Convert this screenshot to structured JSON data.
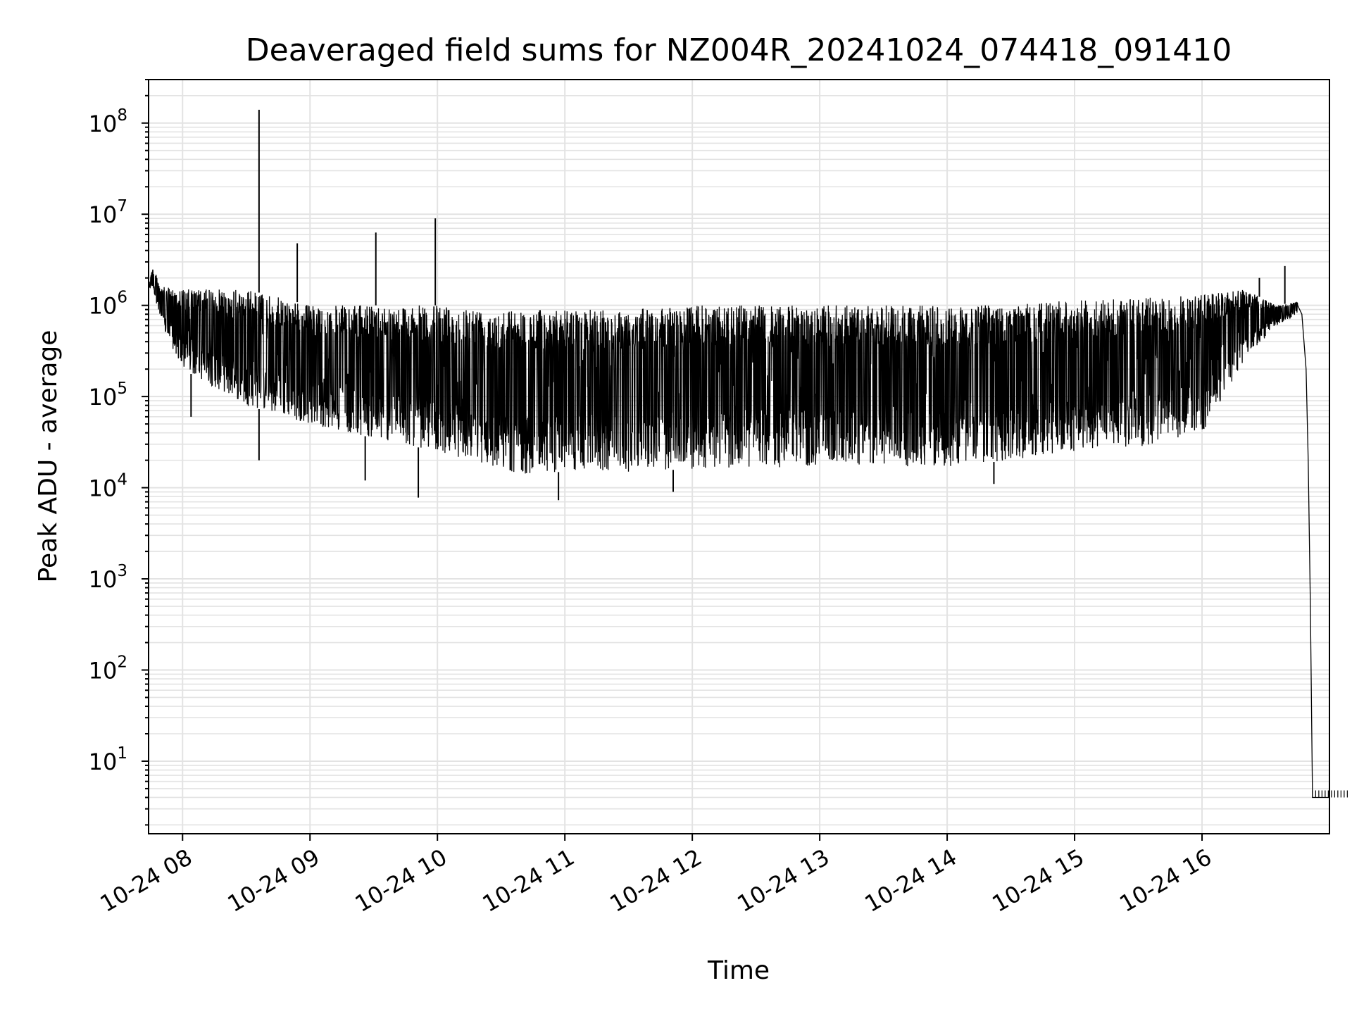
{
  "chart_data": {
    "type": "line",
    "title": "Deaveraged field sums for NZ004R_20241024_074418_091410",
    "xlabel": "Time",
    "ylabel": "Peak ADU - average",
    "yscale": "log",
    "ylim": [
      1.6,
      300000000
    ],
    "xlim": [
      "10-24 07:44",
      "10-24 17:00"
    ],
    "grid": true,
    "x_ticks": [
      "10-24 08",
      "10-24 09",
      "10-24 10",
      "10-24 11",
      "10-24 12",
      "10-24 13",
      "10-24 14",
      "10-24 15",
      "10-24 16"
    ],
    "y_ticks": [
      {
        "base": "10",
        "exp": "1",
        "value": 10
      },
      {
        "base": "10",
        "exp": "2",
        "value": 100
      },
      {
        "base": "10",
        "exp": "3",
        "value": 1000
      },
      {
        "base": "10",
        "exp": "4",
        "value": 10000
      },
      {
        "base": "10",
        "exp": "5",
        "value": 100000
      },
      {
        "base": "10",
        "exp": "6",
        "value": 1000000
      },
      {
        "base": "10",
        "exp": "7",
        "value": 10000000
      },
      {
        "base": "10",
        "exp": "8",
        "value": 100000000
      }
    ],
    "line_color": "#000000",
    "envelope": [
      {
        "t": "10-24 07:44",
        "upper": 1800000,
        "lower": 1500000
      },
      {
        "t": "10-24 07:46",
        "upper": 2600000,
        "lower": 1600000
      },
      {
        "t": "10-24 07:50",
        "upper": 1600000,
        "lower": 600000
      },
      {
        "t": "10-24 08:00",
        "upper": 1500000,
        "lower": 200000
      },
      {
        "t": "10-24 08:30",
        "upper": 1500000,
        "lower": 80000
      },
      {
        "t": "10-24 09:00",
        "upper": 1000000,
        "lower": 50000
      },
      {
        "t": "10-24 09:30",
        "upper": 1000000,
        "lower": 35000
      },
      {
        "t": "10-24 10:00",
        "upper": 1000000,
        "lower": 25000
      },
      {
        "t": "10-24 10:40",
        "upper": 900000,
        "lower": 14000
      },
      {
        "t": "10-24 11:00",
        "upper": 900000,
        "lower": 15000
      },
      {
        "t": "10-24 11:30",
        "upper": 900000,
        "lower": 15000
      },
      {
        "t": "10-24 12:00",
        "upper": 1000000,
        "lower": 16000
      },
      {
        "t": "10-24 13:00",
        "upper": 1000000,
        "lower": 17000
      },
      {
        "t": "10-24 14:00",
        "upper": 1000000,
        "lower": 17000
      },
      {
        "t": "10-24 14:30",
        "upper": 1050000,
        "lower": 20000
      },
      {
        "t": "10-24 15:00",
        "upper": 1150000,
        "lower": 25000
      },
      {
        "t": "10-24 15:30",
        "upper": 1200000,
        "lower": 28000
      },
      {
        "t": "10-24 16:00",
        "upper": 1300000,
        "lower": 40000
      },
      {
        "t": "10-24 16:10",
        "upper": 1400000,
        "lower": 100000
      },
      {
        "t": "10-24 16:20",
        "upper": 1500000,
        "lower": 250000
      },
      {
        "t": "10-24 16:35",
        "upper": 1000000,
        "lower": 600000
      },
      {
        "t": "10-24 16:45",
        "upper": 1100000,
        "lower": 800000
      }
    ],
    "spikes": [
      {
        "t": "10-24 08:36",
        "value": 140000000
      },
      {
        "t": "10-24 08:54",
        "value": 4800000
      },
      {
        "t": "10-24 09:31",
        "value": 6300000
      },
      {
        "t": "10-24 09:59",
        "value": 9000000
      },
      {
        "t": "10-24 16:27",
        "value": 2000000
      },
      {
        "t": "10-24 16:39",
        "value": 2700000
      }
    ],
    "dips": [
      {
        "t": "10-24 08:04",
        "value": 60000
      },
      {
        "t": "10-24 08:36",
        "value": 20000
      },
      {
        "t": "10-24 09:26",
        "value": 12000
      },
      {
        "t": "10-24 09:51",
        "value": 7800
      },
      {
        "t": "10-24 10:57",
        "value": 7300
      },
      {
        "t": "10-24 11:51",
        "value": 9000
      },
      {
        "t": "10-24 14:22",
        "value": 11000
      }
    ],
    "tail": [
      {
        "t": "10-24 16:45",
        "value": 1000000
      },
      {
        "t": "10-24 16:47",
        "value": 800000
      },
      {
        "t": "10-24 16:49",
        "value": 200000
      },
      {
        "t": "10-24 16:50",
        "value": 20000
      },
      {
        "t": "10-24 16:51",
        "value": 500
      },
      {
        "t": "10-24 16:52",
        "value": 4
      },
      {
        "t": "10-24 17:00",
        "value": 4
      }
    ]
  }
}
